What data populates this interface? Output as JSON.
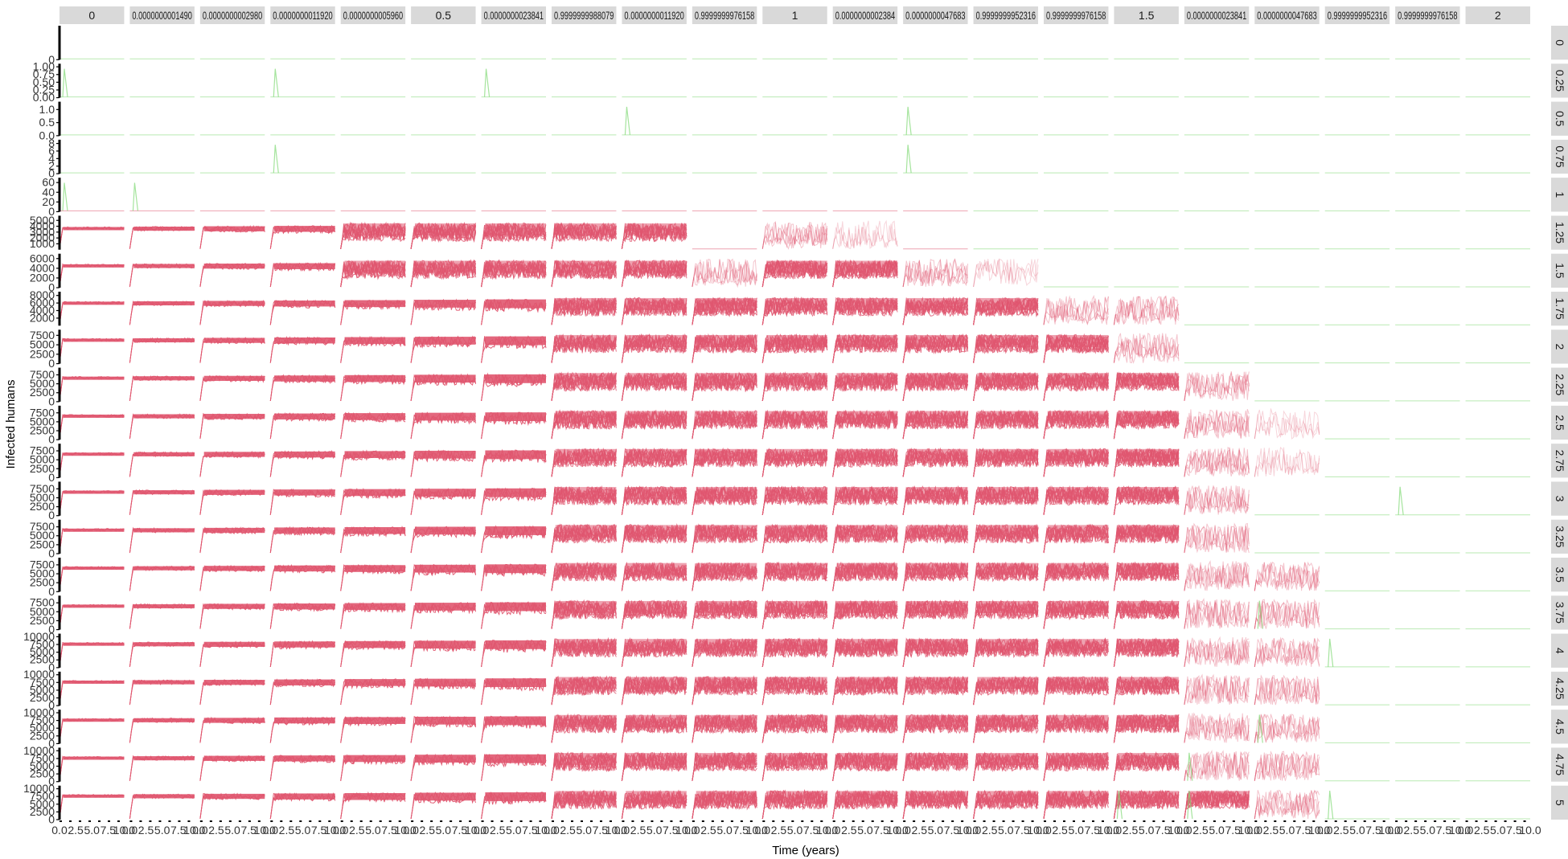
{
  "chart_data": {
    "type": "line",
    "facet_layout": "grid",
    "xlabel": "Time (years)",
    "ylabel": "Infected humans",
    "x_tick_labels": [
      "0.0",
      "2.5",
      "5.0",
      "7.5",
      "10.0"
    ],
    "col_strips": [
      "0",
      "0.0000000001490",
      "0.0000000002980",
      "0.0000000011920",
      "0.0000000005960",
      "0.5",
      "0.0000000023841",
      "0.9999999988079",
      "0.0000000011920",
      "0.9999999976158",
      "1",
      "0.0000000002384",
      "0.0000000047683",
      "0.9999999952316",
      "0.9999999976158",
      "1.5",
      "0.0000000023841",
      "0.0000000047683",
      "0.9999999952316",
      "0.9999999976158",
      "2"
    ],
    "row_strips": [
      "0",
      "0.25",
      "0.5",
      "0.75",
      "1",
      "1.25",
      "1.5",
      "1.75",
      "2",
      "2.25",
      "2.5",
      "2.75",
      "3",
      "3.25",
      "3.5",
      "3.75",
      "4",
      "4.25",
      "4.5",
      "4.75",
      "5"
    ],
    "row_y_ticks": [
      [
        "0"
      ],
      [
        "0.00",
        "0.25",
        "0.50",
        "0.75",
        "1.00"
      ],
      [
        "0.0",
        "0.5",
        "1.0"
      ],
      [
        "0",
        "2",
        "4",
        "6",
        "8"
      ],
      [
        "0",
        "20",
        "40",
        "60"
      ],
      [
        "1000",
        "2000",
        "3000",
        "4000",
        "5000"
      ],
      [
        "0",
        "2000",
        "4000",
        "6000"
      ],
      [
        "2000",
        "4000",
        "6000",
        "8000"
      ],
      [
        "0",
        "2500",
        "5000",
        "7500"
      ],
      [
        "0",
        "2500",
        "5000",
        "7500"
      ],
      [
        "0",
        "2500",
        "5000",
        "7500"
      ],
      [
        "0",
        "2500",
        "5000",
        "7500"
      ],
      [
        "0",
        "2500",
        "5000",
        "7500"
      ],
      [
        "0",
        "2500",
        "5000",
        "7500"
      ],
      [
        "0",
        "2500",
        "5000",
        "7500"
      ],
      [
        "0",
        "2500",
        "5000",
        "7500"
      ],
      [
        "0",
        "2500",
        "5000",
        "7500",
        "10000"
      ],
      [
        "0",
        "2500",
        "5000",
        "7500",
        "10000"
      ],
      [
        "0",
        "2500",
        "5000",
        "7500",
        "10000"
      ],
      [
        "0",
        "2500",
        "5000",
        "7500",
        "10000"
      ],
      [
        "0",
        "2500",
        "5000",
        "7500",
        "10000"
      ]
    ],
    "row_ylim": [
      [
        0,
        1
      ],
      [
        0,
        1.1
      ],
      [
        0,
        1.3
      ],
      [
        0,
        9
      ],
      [
        0,
        70
      ],
      [
        0,
        5800
      ],
      [
        0,
        7000
      ],
      [
        0,
        9000
      ],
      [
        0,
        9000
      ],
      [
        0,
        9500
      ],
      [
        0,
        9500
      ],
      [
        0,
        9500
      ],
      [
        0,
        9500
      ],
      [
        0,
        9500
      ],
      [
        0,
        9500
      ],
      [
        0,
        9500
      ],
      [
        0,
        11000
      ],
      [
        0,
        11000
      ],
      [
        0,
        11000
      ],
      [
        0,
        11000
      ],
      [
        0,
        11000
      ]
    ],
    "series": [
      {
        "color": "#e0566f"
      },
      {
        "color": "#7fd873"
      }
    ],
    "band_matrix": [
      "000000000000000000000",
      "000000000000000000000",
      "000000000000000000000",
      "000000000000000000000",
      "000000000000000000000",
      "555566666078000000000",
      "555566666766730000000",
      "555555566666667700000",
      "555555566666666700000",
      "555555566666666670000",
      "555555566666666678000",
      "555555566666666678000",
      "555555566666666670000",
      "555555566666666670000",
      "555555566666666677000",
      "555555566666666677000",
      "555555566666666677000",
      "555555566666666677000",
      "555555566666666677000",
      "555555566666666677000",
      "555555566666666667000"
    ]
  }
}
